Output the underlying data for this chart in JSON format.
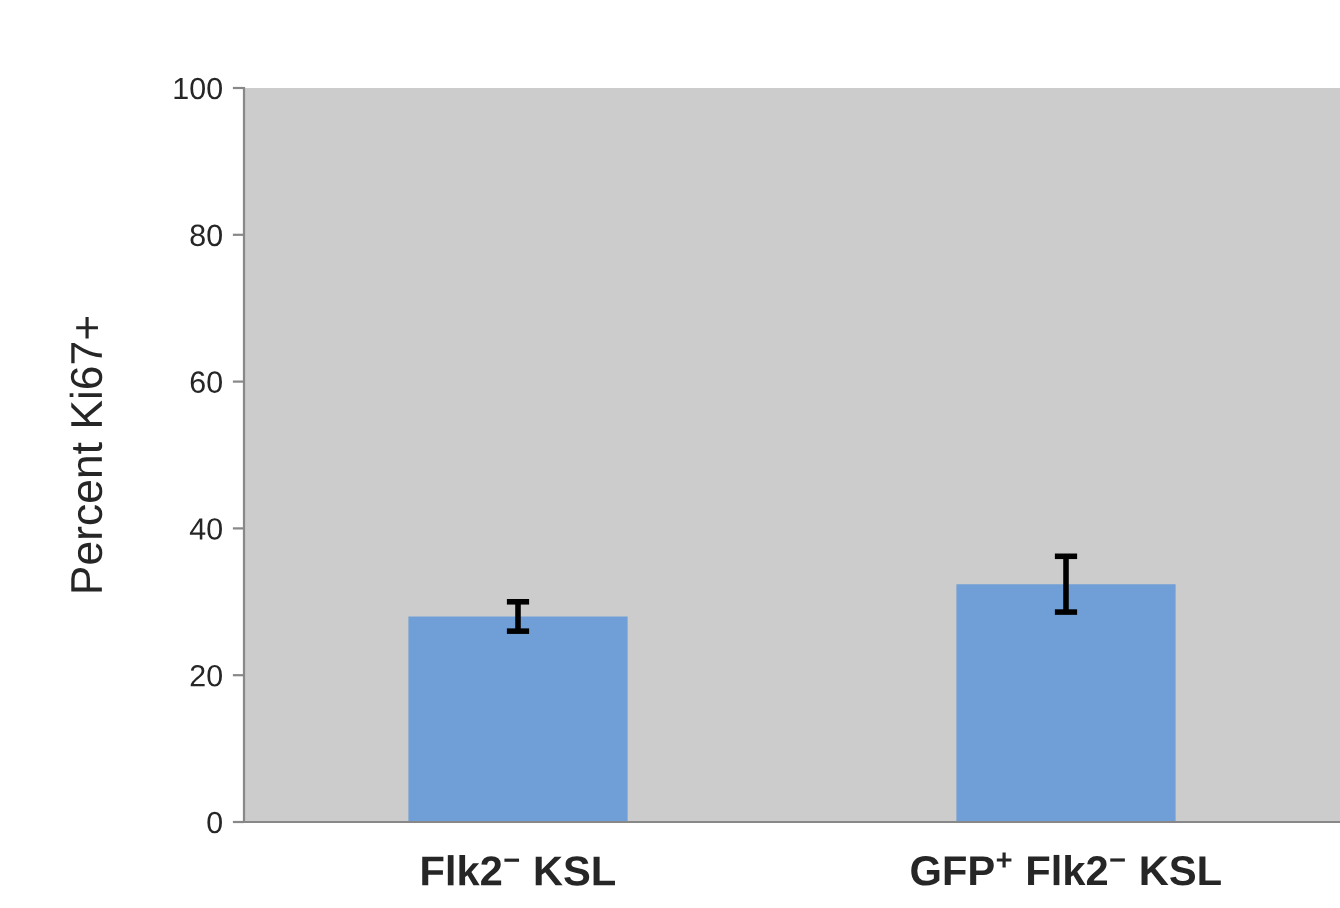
{
  "chart_data": {
    "type": "bar",
    "ylabel": "Percent Ki67+",
    "categories": [
      "Flk2$^{−}$ KSL",
      "GFP$^{+}$ Flk2$^{−}$ KSL"
    ],
    "values": [
      28.0,
      32.4
    ],
    "errors": [
      2.0,
      3.8
    ],
    "color": "#6f9fd6",
    "ylim": [
      0,
      100
    ],
    "yticks": [
      0,
      20,
      40,
      60,
      80,
      100
    ],
    "legend": false
  }
}
